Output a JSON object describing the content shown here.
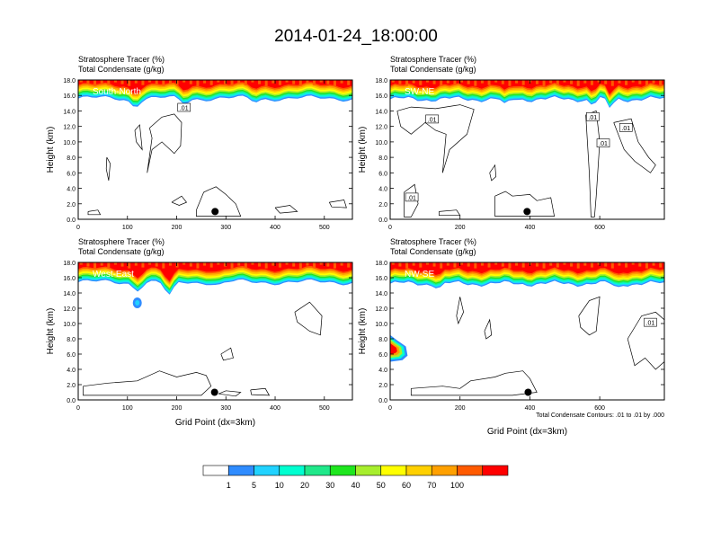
{
  "title": "2014-01-24_18:00:00",
  "colors": {
    "levels": [
      "#ffffff",
      "#2f8cff",
      "#21d2ff",
      "#00ffd0",
      "#20e88a",
      "#1ee61e",
      "#a7ee2d",
      "#ffff00",
      "#ffd000",
      "#ffa000",
      "#ff5a00",
      "#ff0000"
    ]
  },
  "chart_data": [
    {
      "type": "heatmap",
      "panel_label": "South-North",
      "top_left_line1": "Stratosphere Tracer   (%)",
      "top_left_line2": "Total Condensate   (g/kg)",
      "ylabel": "Height (km)",
      "xlabel": "",
      "xlim": [
        0,
        557
      ],
      "ylim": [
        0,
        18
      ],
      "x_ticks": [
        0,
        100,
        200,
        300,
        400,
        500
      ],
      "y_ticks": [
        "0.0",
        "2.0",
        "4.0",
        "6.0",
        "8.0",
        "10.0",
        "12.0",
        "14.0",
        "16.0",
        "18.0"
      ],
      "contour_labels": [
        {
          "text": ".01",
          "x": 215,
          "y": 14.4
        }
      ],
      "marker": {
        "x": 278,
        "y": 1.0
      },
      "tracer_band": {
        "bottom_km": 15.6,
        "top_km": 18.0,
        "dips": [
          [
            115,
            14.7
          ],
          [
            215,
            15.0
          ],
          [
            360,
            15.2
          ]
        ]
      }
    },
    {
      "type": "heatmap",
      "panel_label": "SW-NE",
      "top_left_line1": "Stratosphere Tracer   (%)",
      "top_left_line2": "Total Condensate   (g/kg)",
      "ylabel": "Height (km)",
      "xlabel": "",
      "xlim": [
        0,
        785
      ],
      "ylim": [
        0,
        18
      ],
      "x_ticks": [
        0,
        200,
        400,
        600
      ],
      "y_ticks": [
        "0.0",
        "2.0",
        "4.0",
        "6.0",
        "8.0",
        "10.0",
        "12.0",
        "14.0",
        "16.0",
        "18.0"
      ],
      "contour_labels": [
        {
          "text": ".01",
          "x": 120,
          "y": 12.9
        },
        {
          "text": ".01",
          "x": 580,
          "y": 13.2
        },
        {
          "text": ".01",
          "x": 675,
          "y": 11.8
        },
        {
          "text": ".01",
          "x": 610,
          "y": 9.8
        },
        {
          "text": ".01",
          "x": 62,
          "y": 2.8
        }
      ],
      "marker": {
        "x": 392,
        "y": 1.0
      },
      "tracer_band": {
        "bottom_km": 15.5,
        "top_km": 18.0,
        "dips": [
          [
            330,
            14.6
          ],
          [
            580,
            14.8
          ],
          [
            630,
            14.3
          ]
        ]
      }
    },
    {
      "type": "heatmap",
      "panel_label": "West-East",
      "top_left_line1": "Stratosphere Tracer   (%)",
      "top_left_line2": "Total Condensate   (g/kg)",
      "ylabel": "Height (km)",
      "xlabel": "Grid Point (dx=3km)",
      "xlim": [
        0,
        557
      ],
      "ylim": [
        0,
        18
      ],
      "x_ticks": [
        0,
        100,
        200,
        300,
        400,
        500
      ],
      "y_ticks": [
        "0.0",
        "2.0",
        "4.0",
        "6.0",
        "8.0",
        "10.0",
        "12.0",
        "14.0",
        "16.0",
        "18.0"
      ],
      "contour_labels": [],
      "marker": {
        "x": 277,
        "y": 1.0
      },
      "tracer_band": {
        "bottom_km": 15.4,
        "top_km": 18.0,
        "dips": [
          [
            120,
            14.5
          ],
          [
            185,
            13.5
          ],
          [
            285,
            15.0
          ]
        ]
      }
    },
    {
      "type": "heatmap",
      "panel_label": "NW-SE",
      "top_left_line1": "Stratosphere Tracer   (%)",
      "top_left_line2": "Total Condensate   (g/kg)",
      "ylabel": "Height (km)",
      "xlabel": "Grid Point (dx=3km)",
      "footnote": "Total Condensate Contours: .01 to .01 by .000",
      "xlim": [
        0,
        785
      ],
      "ylim": [
        0,
        18
      ],
      "x_ticks": [
        0,
        200,
        400,
        600
      ],
      "y_ticks": [
        "0.0",
        "2.0",
        "4.0",
        "6.0",
        "8.0",
        "10.0",
        "12.0",
        "14.0",
        "16.0",
        "18.0"
      ],
      "contour_labels": [
        {
          "text": ".01",
          "x": 745,
          "y": 10.1
        }
      ],
      "marker": {
        "x": 395,
        "y": 1.0
      },
      "tracer_band": {
        "bottom_km": 15.2,
        "top_km": 18.0,
        "dips": [
          [
            140,
            14.6
          ],
          [
            650,
            14.6
          ]
        ]
      }
    }
  ],
  "colorbar": {
    "labels": [
      "1",
      "5",
      "10",
      "20",
      "30",
      "40",
      "50",
      "60",
      "70",
      "100"
    ]
  }
}
